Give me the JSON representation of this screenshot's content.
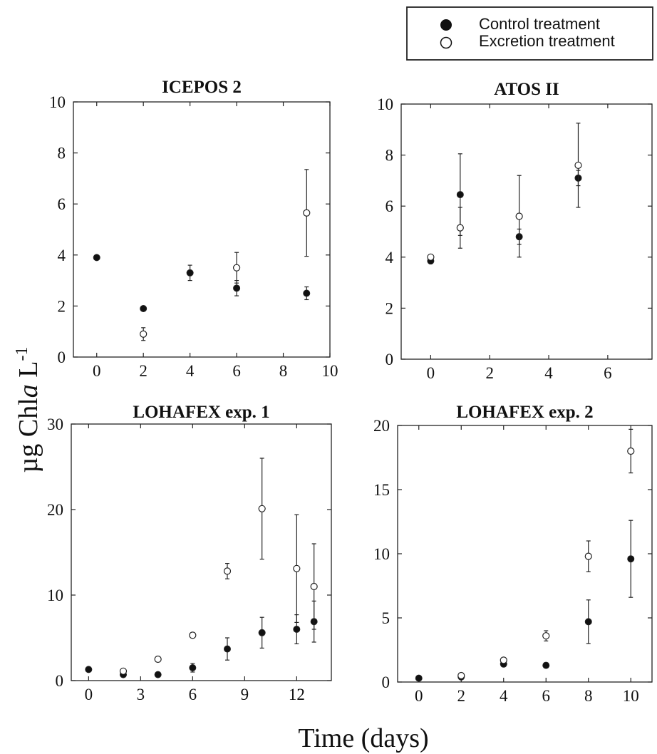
{
  "legend": {
    "items": [
      {
        "label": "Control treatment",
        "marker": "filled"
      },
      {
        "label": "Excretion treatment",
        "marker": "open"
      }
    ]
  },
  "axis": {
    "ylabel_main": "µg Chl",
    "ylabel_italic": "a",
    "ylabel_tail": " L",
    "ylabel_sup": "-1",
    "xlabel": "Time (days)"
  },
  "colors": {
    "control": "#111111",
    "excretion": "#ffffff",
    "stroke": "#222222"
  },
  "chart_data": [
    {
      "type": "scatter",
      "title": "ICEPOS 2",
      "xlim": [
        -1,
        10
      ],
      "ylim": [
        0,
        10
      ],
      "xticks": [
        0,
        2,
        4,
        6,
        8,
        10
      ],
      "yticks": [
        0,
        2,
        4,
        6,
        8,
        10
      ],
      "series": [
        {
          "name": "Control treatment",
          "marker": "filled",
          "x": [
            0,
            2,
            4,
            6,
            9
          ],
          "y": [
            3.9,
            1.9,
            3.3,
            2.7,
            2.5
          ],
          "err": [
            0,
            0,
            0.3,
            0.3,
            0.25
          ]
        },
        {
          "name": "Excretion treatment",
          "marker": "open",
          "x": [
            2,
            6,
            9
          ],
          "y": [
            0.9,
            3.5,
            5.65
          ],
          "err": [
            0.25,
            0.6,
            1.7
          ]
        }
      ]
    },
    {
      "type": "scatter",
      "title": "ATOS II",
      "xlim": [
        -1,
        7.5
      ],
      "ylim": [
        0,
        10
      ],
      "xticks": [
        0,
        2,
        4,
        6
      ],
      "yticks": [
        0,
        2,
        4,
        6,
        8,
        10
      ],
      "series": [
        {
          "name": "Control treatment",
          "marker": "filled",
          "x": [
            0,
            1,
            3,
            5
          ],
          "y": [
            3.85,
            6.45,
            4.8,
            7.1
          ],
          "err": [
            0,
            1.6,
            0.3,
            0.3
          ]
        },
        {
          "name": "Excretion treatment",
          "marker": "open",
          "x": [
            0,
            1,
            3,
            5
          ],
          "y": [
            4.0,
            5.15,
            5.6,
            7.6
          ],
          "err": [
            0,
            0.8,
            1.6,
            1.65
          ]
        }
      ]
    },
    {
      "type": "scatter",
      "title": "LOHAFEX exp. 1",
      "xlim": [
        -1,
        14
      ],
      "ylim": [
        0,
        30
      ],
      "xticks": [
        0,
        3,
        6,
        9,
        12
      ],
      "yticks": [
        0,
        10,
        20,
        30
      ],
      "series": [
        {
          "name": "Control treatment",
          "marker": "filled",
          "x": [
            0,
            2,
            4,
            6,
            8,
            10,
            12,
            13
          ],
          "y": [
            1.3,
            0.7,
            0.7,
            1.5,
            3.7,
            5.6,
            6.0,
            6.9
          ],
          "err": [
            0,
            0,
            0,
            0.5,
            1.3,
            1.8,
            1.7,
            2.4
          ]
        },
        {
          "name": "Excretion treatment",
          "marker": "open",
          "x": [
            2,
            4,
            6,
            8,
            10,
            12,
            13
          ],
          "y": [
            1.1,
            2.5,
            5.3,
            12.8,
            20.1,
            13.1,
            11.0
          ],
          "err": [
            0,
            0.3,
            0.3,
            0.9,
            5.9,
            6.3,
            5.0
          ]
        }
      ]
    },
    {
      "type": "scatter",
      "title": "LOHAFEX exp. 2",
      "xlim": [
        -1,
        11
      ],
      "ylim": [
        0,
        20
      ],
      "xticks": [
        0,
        2,
        4,
        6,
        8,
        10
      ],
      "yticks": [
        0,
        5,
        10,
        15,
        20
      ],
      "series": [
        {
          "name": "Control treatment",
          "marker": "filled",
          "x": [
            0,
            2,
            4,
            6,
            8,
            10
          ],
          "y": [
            0.3,
            0.4,
            1.4,
            1.3,
            4.7,
            9.6
          ],
          "err": [
            0,
            0,
            0.2,
            0.2,
            1.7,
            3.0
          ]
        },
        {
          "name": "Excretion treatment",
          "marker": "open",
          "x": [
            2,
            4,
            6,
            8,
            10
          ],
          "y": [
            0.5,
            1.7,
            3.6,
            9.8,
            18.0
          ],
          "err": [
            0,
            0.2,
            0.4,
            1.2,
            1.7
          ]
        }
      ]
    }
  ]
}
